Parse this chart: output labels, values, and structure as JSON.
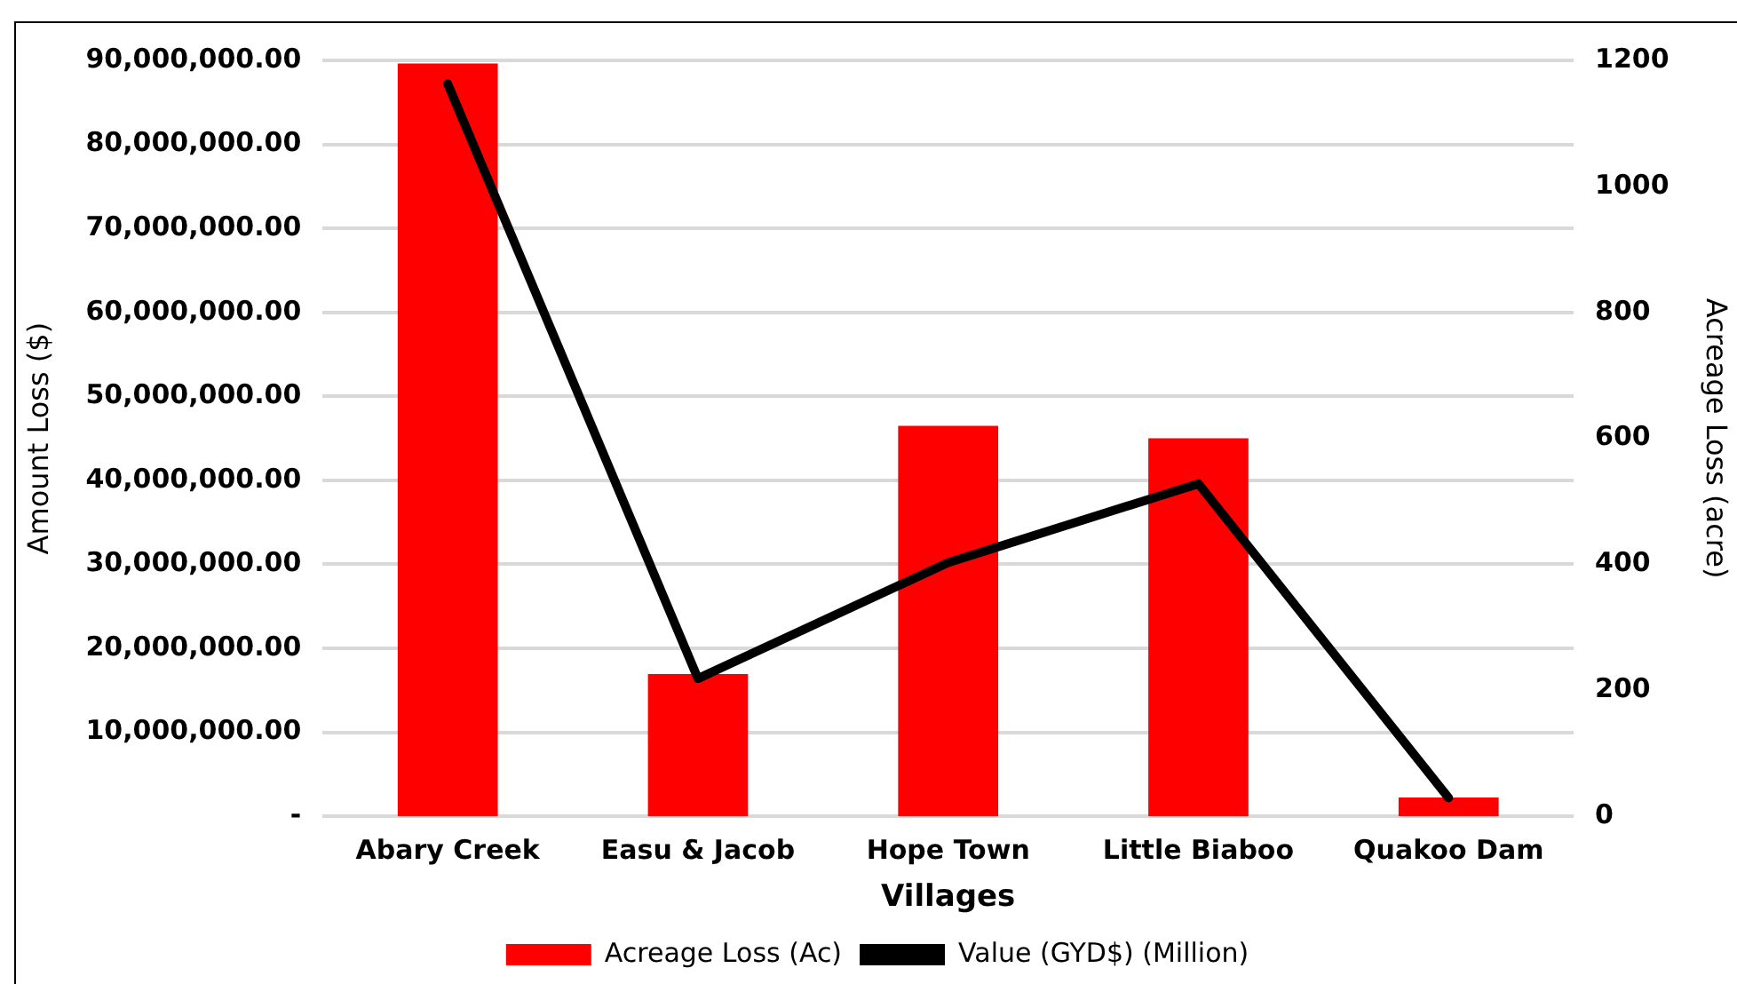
{
  "chart_data": {
    "type": "bar",
    "xlabel": "Villages",
    "ylabel": "Amount Loss ($)",
    "y2label": "Acreage Loss (acre)",
    "categories": [
      "Abary Creek",
      "Easu & Jacob",
      "Hope Town",
      "Little Biaboo",
      "Quakoo Dam"
    ],
    "series": [
      {
        "name": "Acreage Loss (Ac)",
        "axis": "y2",
        "color": "#ff0000",
        "values": [
          1195,
          226,
          620,
          600,
          30
        ]
      },
      {
        "name": "Value (GYD$) (Million)",
        "type": "line",
        "color": "#000000",
        "marker": "none",
        "values": [
          87200000,
          16400000,
          30200000,
          39600000,
          2200000
        ]
      }
    ],
    "ylim": [
      0,
      90000000
    ],
    "yticks": [
      {
        "value": 0,
        "label": "-"
      },
      {
        "value": 10000000,
        "label": "10,000,000.00"
      },
      {
        "value": 20000000,
        "label": "20,000,000.00"
      },
      {
        "value": 30000000,
        "label": "30,000,000.00"
      },
      {
        "value": 40000000,
        "label": "40,000,000.00"
      },
      {
        "value": 50000000,
        "label": "50,000,000.00"
      },
      {
        "value": 60000000,
        "label": "60,000,000.00"
      },
      {
        "value": 70000000,
        "label": "70,000,000.00"
      },
      {
        "value": 80000000,
        "label": "80,000,000.00"
      },
      {
        "value": 90000000,
        "label": "90,000,000.00"
      }
    ],
    "y2lim": [
      0,
      1200
    ],
    "y2ticks": [
      0,
      200,
      400,
      600,
      800,
      1000,
      1200
    ],
    "grid": "y",
    "legend": "bottom"
  }
}
